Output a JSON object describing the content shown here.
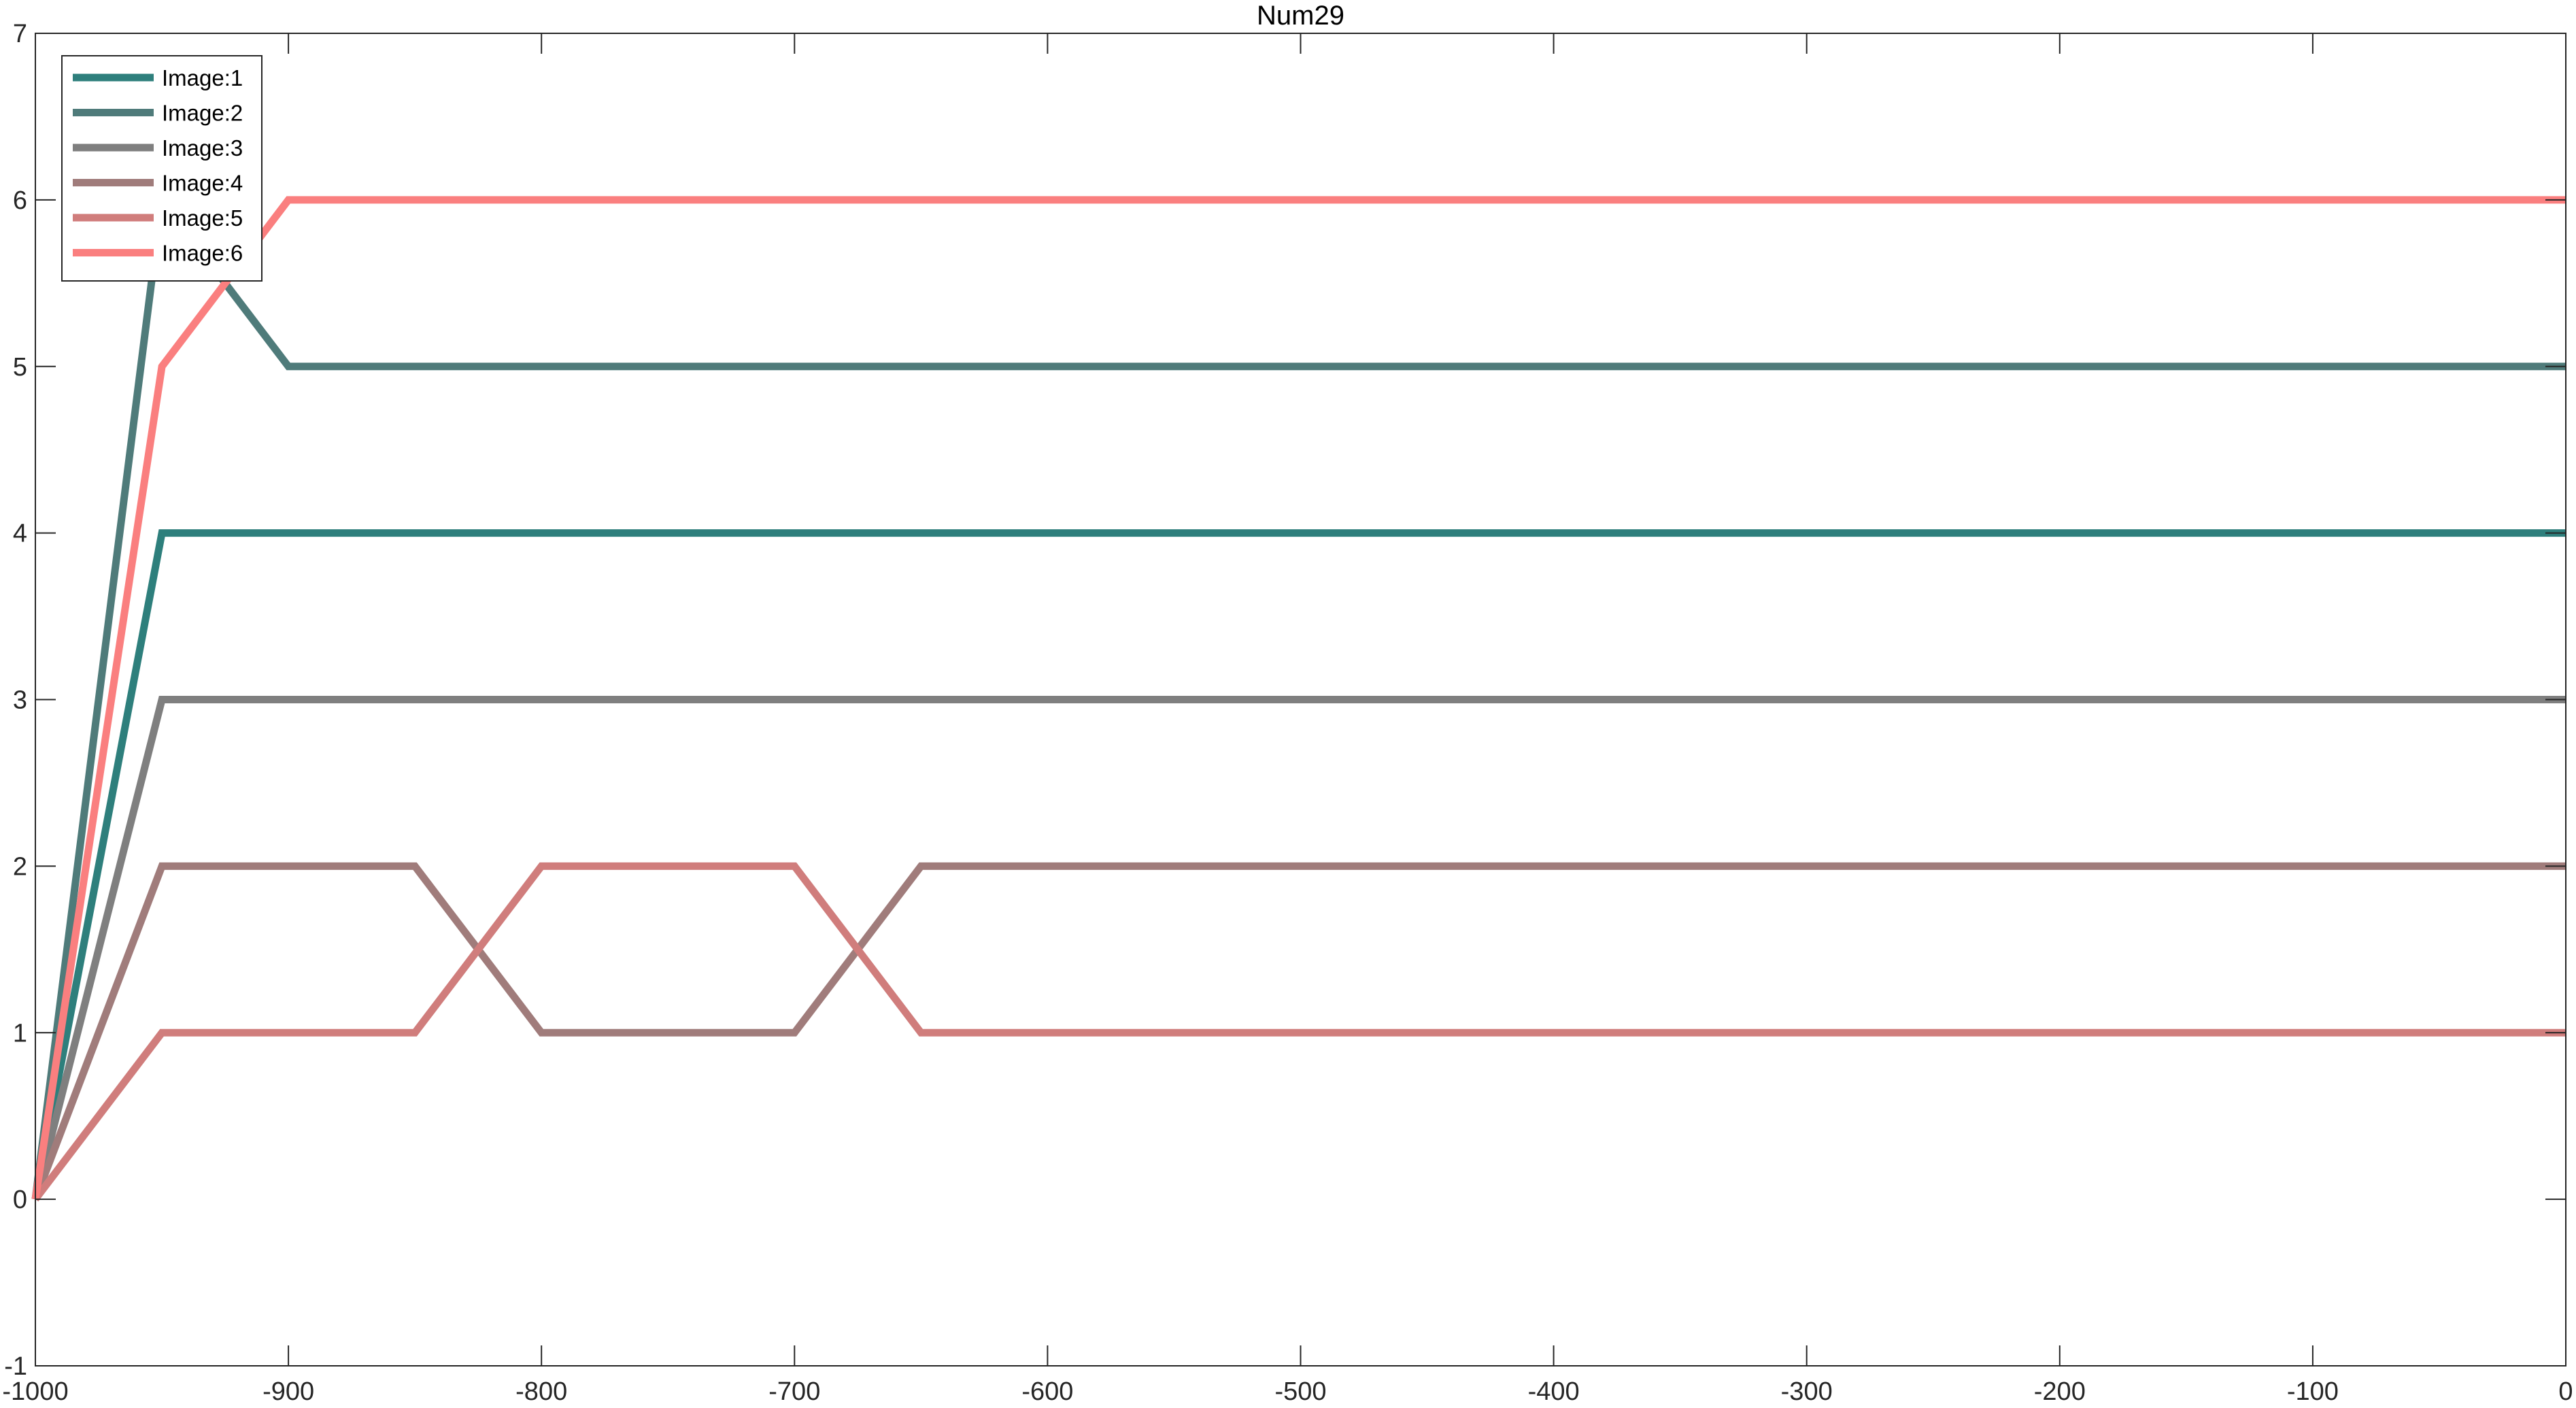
{
  "chart_data": {
    "type": "line",
    "title": "Num29",
    "xlabel": "",
    "ylabel": "",
    "xlim": [
      -1000,
      0
    ],
    "ylim": [
      -1,
      7
    ],
    "xticks": [
      "-1000",
      "-900",
      "-800",
      "-700",
      "-600",
      "-500",
      "-400",
      "-300",
      "-200",
      "-100",
      "0"
    ],
    "yticks": [
      "-1",
      "0",
      "1",
      "2",
      "3",
      "4",
      "5",
      "6",
      "7"
    ],
    "grid": false,
    "legend_position": "top-left",
    "x": [
      -1000,
      -950,
      -900,
      -850,
      -800,
      -750,
      -700,
      -650,
      -600,
      -550,
      -500,
      -450,
      -400,
      -350,
      -300,
      -250,
      -200,
      -150,
      -100,
      -50,
      0
    ],
    "series": [
      {
        "name": "Image:1",
        "color": "#2e7f7c",
        "values": [
          0,
          4,
          4,
          4,
          4,
          4,
          4,
          4,
          4,
          4,
          4,
          4,
          4,
          4,
          4,
          4,
          4,
          4,
          4,
          4,
          4
        ]
      },
      {
        "name": "Image:2",
        "color": "#4f7b7a",
        "values": [
          0,
          6,
          5,
          5,
          5,
          5,
          5,
          5,
          5,
          5,
          5,
          5,
          5,
          5,
          5,
          5,
          5,
          5,
          5,
          5,
          5
        ]
      },
      {
        "name": "Image:3",
        "color": "#7f7f7f",
        "values": [
          0,
          3,
          3,
          3,
          3,
          3,
          3,
          3,
          3,
          3,
          3,
          3,
          3,
          3,
          3,
          3,
          3,
          3,
          3,
          3,
          3
        ]
      },
      {
        "name": "Image:4",
        "color": "#a07c7b",
        "values": [
          0,
          2,
          2,
          2,
          1,
          1,
          1,
          2,
          2,
          2,
          2,
          2,
          2,
          2,
          2,
          2,
          2,
          2,
          2,
          2,
          2
        ]
      },
      {
        "name": "Image:5",
        "color": "#d07d7c",
        "values": [
          0,
          1,
          1,
          1,
          2,
          2,
          2,
          1,
          1,
          1,
          1,
          1,
          1,
          1,
          1,
          1,
          1,
          1,
          1,
          1,
          1
        ]
      },
      {
        "name": "Image:6",
        "color": "#fa7f7f",
        "values": [
          0,
          5,
          6,
          6,
          6,
          6,
          6,
          6,
          6,
          6,
          6,
          6,
          6,
          6,
          6,
          6,
          6,
          6,
          6,
          6,
          6
        ]
      }
    ]
  }
}
